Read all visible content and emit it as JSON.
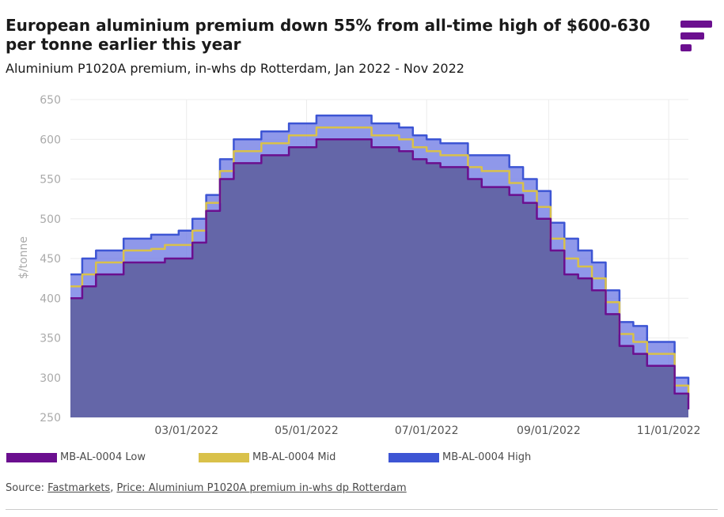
{
  "header": {
    "title": "European aluminium premium down 55% from all-time high of $600-630 per tonne earlier this year",
    "subtitle": "Aluminium P1020A premium, in-whs dp Rotterdam, Jan 2022 - Nov 2022"
  },
  "source": {
    "prefix": "Source: ",
    "link1": "Fastmarkets",
    "sep": ", ",
    "link2": "Price: Aluminium P1020A premium in-whs dp Rotterdam"
  },
  "colors": {
    "low": "#6b0f8f",
    "mid": "#d9c14a",
    "high": "#3d55d4",
    "area": "#6466a8",
    "logo": "#6b0f8f"
  },
  "chart_data": {
    "type": "area",
    "xlabel": "",
    "ylabel": "$/tonne",
    "ylim": [
      250,
      650
    ],
    "yticks": [
      250,
      300,
      350,
      400,
      450,
      500,
      550,
      600,
      650
    ],
    "xticks": [
      "03/01/2022",
      "05/01/2022",
      "07/01/2022",
      "09/01/2022",
      "11/01/2022"
    ],
    "xlim": [
      "2022-01-01",
      "2022-11-11"
    ],
    "grid": true,
    "legend_position": "bottom",
    "x": [
      "2022-01-01",
      "2022-01-07",
      "2022-01-14",
      "2022-01-21",
      "2022-01-28",
      "2022-02-04",
      "2022-02-11",
      "2022-02-18",
      "2022-02-25",
      "2022-03-04",
      "2022-03-11",
      "2022-03-18",
      "2022-03-25",
      "2022-04-01",
      "2022-04-08",
      "2022-04-15",
      "2022-04-22",
      "2022-04-29",
      "2022-05-06",
      "2022-05-13",
      "2022-05-20",
      "2022-05-27",
      "2022-06-03",
      "2022-06-10",
      "2022-06-17",
      "2022-06-24",
      "2022-07-01",
      "2022-07-08",
      "2022-07-15",
      "2022-07-22",
      "2022-07-29",
      "2022-08-05",
      "2022-08-12",
      "2022-08-19",
      "2022-08-26",
      "2022-09-02",
      "2022-09-09",
      "2022-09-16",
      "2022-09-23",
      "2022-09-30",
      "2022-10-07",
      "2022-10-14",
      "2022-10-21",
      "2022-10-28",
      "2022-11-04",
      "2022-11-11"
    ],
    "series": [
      {
        "name": "MB-AL-0004 Low",
        "color": "#6b0f8f",
        "values": [
          400,
          415,
          430,
          430,
          445,
          445,
          445,
          450,
          450,
          470,
          510,
          550,
          570,
          570,
          580,
          580,
          590,
          590,
          600,
          600,
          600,
          600,
          590,
          590,
          585,
          575,
          570,
          565,
          565,
          550,
          540,
          540,
          530,
          520,
          500,
          460,
          430,
          425,
          410,
          380,
          340,
          330,
          315,
          315,
          280,
          260
        ]
      },
      {
        "name": "MB-AL-0004 Mid",
        "color": "#d9c14a",
        "values": [
          415,
          430,
          445,
          445,
          460,
          460,
          462,
          467,
          467,
          485,
          520,
          560,
          585,
          585,
          595,
          595,
          605,
          605,
          615,
          615,
          615,
          615,
          605,
          605,
          600,
          590,
          585,
          580,
          580,
          565,
          560,
          560,
          545,
          535,
          515,
          475,
          450,
          440,
          425,
          395,
          355,
          345,
          330,
          330,
          290,
          275
        ]
      },
      {
        "name": "MB-AL-0004 High",
        "color": "#3d55d4",
        "values": [
          430,
          450,
          460,
          460,
          475,
          475,
          480,
          480,
          485,
          500,
          530,
          575,
          600,
          600,
          610,
          610,
          620,
          620,
          630,
          630,
          630,
          630,
          620,
          620,
          615,
          605,
          600,
          595,
          595,
          580,
          580,
          580,
          565,
          550,
          535,
          495,
          475,
          460,
          445,
          410,
          370,
          365,
          345,
          345,
          300,
          290
        ]
      }
    ]
  }
}
